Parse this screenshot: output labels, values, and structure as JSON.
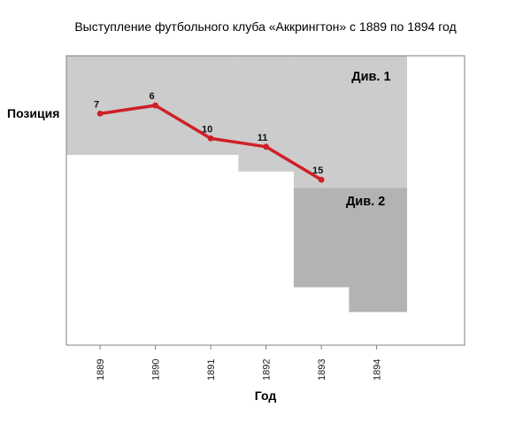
{
  "chart_data": {
    "type": "line",
    "title": "Выступление футбольного клуба «Аккрингтон» с 1889 по 1894 год",
    "xlabel": "Год",
    "ylabel": "Позиция",
    "x": [
      1889,
      1890,
      1891,
      1892,
      1893
    ],
    "values": [
      7,
      6,
      10,
      11,
      15
    ],
    "point_labels": [
      "7",
      "6",
      "10",
      "11",
      "15"
    ],
    "x_ticks": [
      "1889",
      "1890",
      "1891",
      "1892",
      "1893",
      "1894"
    ],
    "x_range": [
      1888.39,
      1895.59
    ],
    "y_range": [
      0,
      35
    ],
    "y_inverted": true,
    "grid": false,
    "legend": "none",
    "line_color": "#cf2027",
    "marker_color": "#cf2027",
    "frame_color": "#808080",
    "bands": [
      {
        "label": "Див. 1",
        "color": "#cccccc",
        "label_x": 1893.9,
        "label_y": 3.0,
        "steps": [
          {
            "x_from": 1888.39,
            "x_to": 1891.5,
            "y_from": 0,
            "y_to": 12
          },
          {
            "x_from": 1891.5,
            "x_to": 1892.5,
            "y_from": 0,
            "y_to": 14
          },
          {
            "x_from": 1892.5,
            "x_to": 1894.55,
            "y_from": 0,
            "y_to": 16
          }
        ]
      },
      {
        "label": "Див. 2",
        "color": "#b3b3b3",
        "label_x": 1893.8,
        "label_y": 18.1,
        "steps": [
          {
            "x_from": 1892.5,
            "x_to": 1893.5,
            "y_from": 16,
            "y_to": 28
          },
          {
            "x_from": 1893.5,
            "x_to": 1894.55,
            "y_from": 16,
            "y_to": 31
          }
        ]
      }
    ]
  }
}
